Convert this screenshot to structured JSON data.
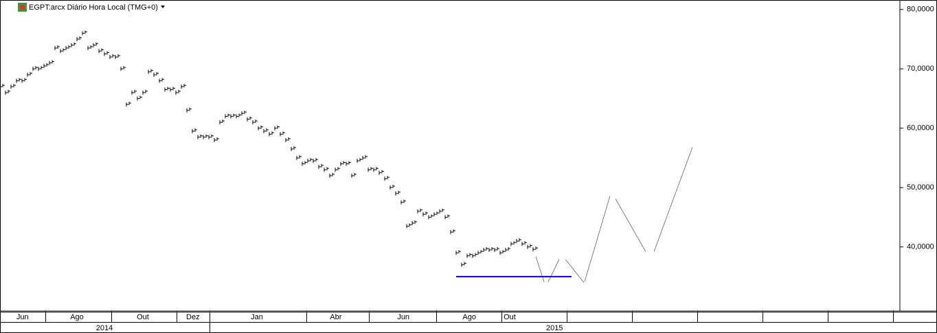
{
  "chart_data": {
    "type": "bar-ticks",
    "title": "EGPT:arcx Diário Hora Local (TMG+0)",
    "xlim": [
      0,
      163.75
    ],
    "ylim": [
      29.2,
      81.6
    ],
    "yticks": [
      {
        "value": 80,
        "label": "80,0000"
      },
      {
        "value": 70,
        "label": "70,0000"
      },
      {
        "value": 60,
        "label": "60,0000"
      },
      {
        "value": 50,
        "label": "50,0000"
      },
      {
        "value": 40,
        "label": "40,0000"
      }
    ],
    "xticks": [
      {
        "value": 4.1,
        "label": "Jun"
      },
      {
        "value": 14,
        "label": "Ago"
      },
      {
        "value": 26,
        "label": "Out"
      },
      {
        "value": 35.1,
        "label": "Dez"
      },
      {
        "value": 46.75,
        "label": "Jan"
      },
      {
        "value": 61.1,
        "label": "Abr"
      },
      {
        "value": 73.4,
        "label": "Jun"
      },
      {
        "value": 85.4,
        "label": "Ago"
      },
      {
        "value": 92.75,
        "label": "Out"
      }
    ],
    "x_separators": [
      8.25,
      20.25,
      32.1,
      38.1,
      55.75,
      67.1,
      79.4,
      91.25,
      103.1,
      115,
      126.9,
      138.75,
      150.6,
      162.5
    ],
    "years": [
      {
        "value": 19,
        "label": "2014"
      },
      {
        "value": 100.9,
        "label": "2015"
      }
    ],
    "year_separators": [
      38.1
    ],
    "x": [
      0,
      1,
      2,
      3,
      4,
      5,
      6,
      7,
      8,
      9,
      10,
      11,
      12,
      13,
      14,
      15,
      16,
      17,
      18,
      19,
      20,
      21,
      22,
      23,
      24,
      25,
      26,
      27,
      28,
      29,
      30,
      31,
      32,
      33,
      34,
      35,
      36,
      37,
      38,
      39,
      40,
      41,
      42,
      43,
      44,
      45,
      46,
      47,
      48,
      49,
      50,
      51,
      52,
      53,
      54,
      55,
      56,
      57,
      58,
      59,
      60,
      61,
      62,
      63,
      64,
      65,
      66,
      67,
      68,
      69,
      70,
      71,
      72,
      73,
      74,
      75,
      76,
      77,
      78,
      79,
      80,
      81,
      82,
      83,
      84,
      85,
      86,
      87,
      88,
      89,
      90,
      91,
      92,
      93,
      94,
      95,
      96,
      97
    ],
    "series": [
      {
        "color": "#000000",
        "values": [
          67,
          66,
          67,
          68,
          68,
          69,
          70,
          70,
          70.5,
          71,
          73.5,
          73,
          73.5,
          74,
          75,
          76,
          73.5,
          74,
          73,
          72.5,
          72,
          72,
          70,
          64,
          66,
          65,
          66,
          69.5,
          69,
          68,
          66.5,
          66.5,
          66,
          67,
          63,
          59.5,
          58.5,
          58.5,
          58.5,
          58,
          61,
          62,
          62,
          62,
          62.5,
          61.5,
          61,
          60,
          59.5,
          59,
          60,
          59,
          58,
          56.5,
          55,
          54,
          54.5,
          54.5,
          53.5,
          53,
          52,
          53,
          54,
          54,
          52,
          54.5,
          55,
          53,
          53,
          52.5,
          51.5,
          50,
          49,
          47.5,
          43.5,
          44,
          46,
          45.5,
          45,
          45.5,
          46,
          45,
          42.5,
          39,
          37,
          38.5,
          38.5,
          39,
          39.5,
          39.5,
          39.5,
          39,
          39.5,
          40.5,
          41,
          40.5,
          40,
          39.6
        ]
      }
    ],
    "drawings": [
      {
        "color": "#000000",
        "x": [
          97.5,
          99
        ],
        "values": [
          38.4,
          34.1
        ]
      },
      {
        "color": "#000000",
        "x": [
          99.75,
          101.75
        ],
        "values": [
          34.1,
          37.9
        ]
      },
      {
        "color": "#000000",
        "x": [
          102.9,
          106.25
        ],
        "values": [
          37.9,
          34.0
        ]
      },
      {
        "color": "#000000",
        "x": [
          106.4,
          111
        ],
        "values": [
          34.2,
          48.6
        ]
      },
      {
        "color": "#000000",
        "x": [
          112,
          117.5
        ],
        "values": [
          48.1,
          39.2
        ]
      },
      {
        "color": "#000000",
        "x": [
          119,
          126
        ],
        "values": [
          39.2,
          56.8
        ]
      }
    ],
    "support": {
      "color": "#0000cc",
      "x": [
        83,
        104
      ],
      "values": [
        35.0,
        35.0
      ]
    }
  }
}
